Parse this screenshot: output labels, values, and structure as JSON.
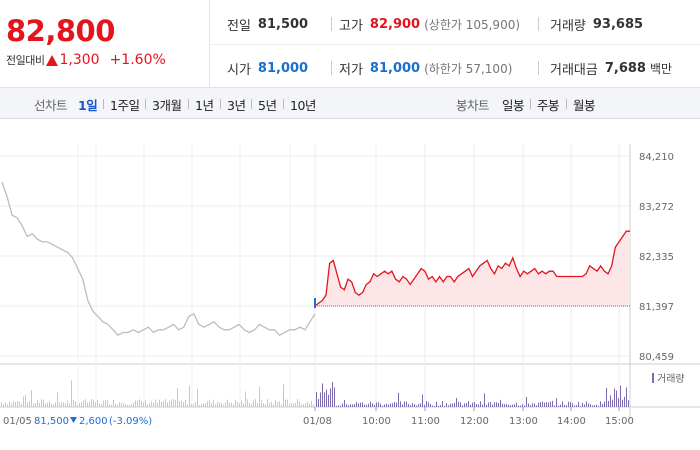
{
  "quote": {
    "price": "82,800",
    "change_label": "전일대비",
    "change_amount": "1,300",
    "change_pct": "+1.60%"
  },
  "stats": {
    "prev_close": {
      "label": "전일",
      "value": "81,500"
    },
    "high": {
      "label": "고가",
      "value": "82,900",
      "extra": "(상한가 105,900)"
    },
    "volume": {
      "label": "거래량",
      "value": "93,685"
    },
    "open": {
      "label": "시가",
      "value": "81,000"
    },
    "low": {
      "label": "저가",
      "value": "81,000",
      "extra": "(하한가 57,100)"
    },
    "trade_value": {
      "label": "거래대금",
      "value": "7,688",
      "unit": "백만"
    }
  },
  "toolbar": {
    "line_label": "선차트",
    "ranges": [
      "1일",
      "1주일",
      "3개월",
      "1년",
      "3년",
      "5년",
      "10년"
    ],
    "active_range": "1일",
    "candle_label": "봉차트",
    "candles": [
      "일봉",
      "주봉",
      "월봉"
    ]
  },
  "colors": {
    "up": "#e4141e",
    "down": "#1b6fd4",
    "prev_line": "#bdbdbd",
    "volume": "#7d6bb0"
  },
  "chart_data": {
    "type": "line",
    "y_ticks": [
      "84,210",
      "83,272",
      "82,335",
      "81,397",
      "80,459"
    ],
    "ylim": [
      80459,
      84210
    ],
    "x_ticks": [
      "01/08",
      "10:00",
      "11:00",
      "12:00",
      "13:00",
      "14:00",
      "15:00"
    ],
    "prev_day_label": "01/05",
    "prev_day_close": "81,500",
    "prev_day_change": "2,600",
    "prev_day_change_pct": "(-3.09%)",
    "volume_legend": "거래량",
    "base_price": 81397,
    "prev_day_series": [
      83720,
      83450,
      83100,
      83050,
      82900,
      82700,
      82750,
      82650,
      82600,
      82600,
      82550,
      82500,
      82450,
      82400,
      82300,
      82100,
      81900,
      81500,
      81300,
      81200,
      81100,
      81050,
      80950,
      80850,
      80900,
      80900,
      80950,
      80900,
      80950,
      81000,
      80900,
      80950,
      80950,
      81000,
      81050,
      80950,
      81000,
      81200,
      81250,
      81050,
      81000,
      81050,
      81100,
      81000,
      80950,
      80950,
      81000,
      81050,
      80950,
      80900,
      80950,
      81050,
      81000,
      80950,
      80950,
      80850,
      80900,
      80950,
      80950,
      81000,
      80950,
      81100,
      81250
    ],
    "today_series": [
      81397,
      81450,
      81500,
      81600,
      82200,
      82250,
      82000,
      81750,
      81700,
      81900,
      81850,
      81650,
      81600,
      81650,
      81800,
      81850,
      82000,
      81950,
      82000,
      82050,
      82000,
      82050,
      81900,
      81850,
      81950,
      81900,
      81800,
      81900,
      82000,
      82100,
      82050,
      81900,
      81950,
      81850,
      81950,
      81850,
      81950,
      81950,
      81850,
      81950,
      82000,
      82050,
      82100,
      81950,
      82050,
      82150,
      82200,
      82250,
      82100,
      82000,
      82150,
      82100,
      82200,
      82150,
      82300,
      82100,
      81950,
      82050,
      82000,
      82050,
      82100,
      82000,
      82050,
      82000,
      82050,
      82050,
      81950,
      81950,
      81950,
      81950,
      81950,
      81950,
      81950,
      81950,
      82000,
      82150,
      82100,
      82050,
      82150,
      82050,
      82000,
      82150,
      82500,
      82600,
      82700,
      82800,
      82800
    ]
  }
}
